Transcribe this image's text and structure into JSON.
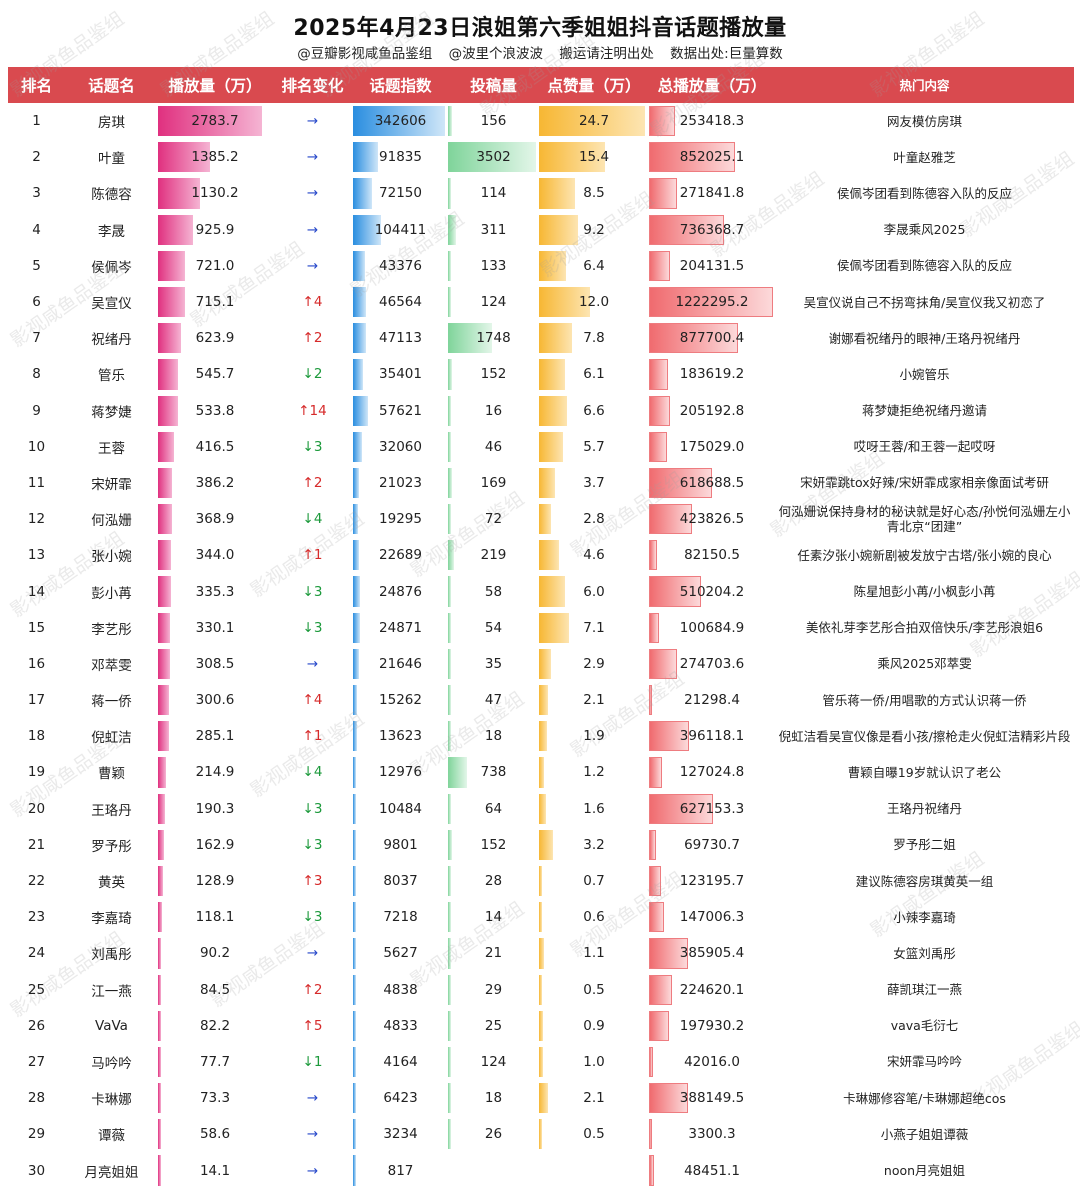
{
  "title": "2025年4月23日浪姐第六季姐姐抖音话题播放量",
  "subtitle": [
    "@豆瓣影视咸鱼品鉴组",
    "@波里个浪波波",
    "搬运请注明出处",
    "数据出处:巨量算数"
  ],
  "watermark": "影视咸鱼品鉴组",
  "headers": [
    "排名",
    "话题名",
    "播放量（万）",
    "排名变化",
    "话题指数",
    "投稿量",
    "点赞量（万）",
    "总播放量（万）",
    "热门内容"
  ],
  "colors": {
    "header_bg": "#d94a4f",
    "up": "#d62a2a",
    "down": "#1d9a3c",
    "same": "#2446c9"
  },
  "rows": [
    {
      "rank": "1",
      "name": "房琪",
      "play": "2783.7",
      "change": "→",
      "dir": "same",
      "index": "342606",
      "posts": "156",
      "likes": "24.7",
      "total": "253418.3",
      "hot": "网友模仿房琪"
    },
    {
      "rank": "2",
      "name": "叶童",
      "play": "1385.2",
      "change": "→",
      "dir": "same",
      "index": "91835",
      "posts": "3502",
      "likes": "15.4",
      "total": "852025.1",
      "hot": "叶童赵雅芝"
    },
    {
      "rank": "3",
      "name": "陈德容",
      "play": "1130.2",
      "change": "→",
      "dir": "same",
      "index": "72150",
      "posts": "114",
      "likes": "8.5",
      "total": "271841.8",
      "hot": "侯佩岑团看到陈德容入队的反应"
    },
    {
      "rank": "4",
      "name": "李晟",
      "play": "925.9",
      "change": "→",
      "dir": "same",
      "index": "104411",
      "posts": "311",
      "likes": "9.2",
      "total": "736368.7",
      "hot": "李晟乘风2025"
    },
    {
      "rank": "5",
      "name": "侯佩岑",
      "play": "721.0",
      "change": "→",
      "dir": "same",
      "index": "43376",
      "posts": "133",
      "likes": "6.4",
      "total": "204131.5",
      "hot": "侯佩岑团看到陈德容入队的反应"
    },
    {
      "rank": "6",
      "name": "吴宣仪",
      "play": "715.1",
      "change": "↑4",
      "dir": "up",
      "index": "46564",
      "posts": "124",
      "likes": "12.0",
      "total": "1222295.2",
      "hot": "吴宣仪说自己不拐弯抹角/吴宣仪我又初恋了"
    },
    {
      "rank": "7",
      "name": "祝绪丹",
      "play": "623.9",
      "change": "↑2",
      "dir": "up",
      "index": "47113",
      "posts": "1748",
      "likes": "7.8",
      "total": "877700.4",
      "hot": "谢娜看祝绪丹的眼神/王珞丹祝绪丹"
    },
    {
      "rank": "8",
      "name": "管乐",
      "play": "545.7",
      "change": "↓2",
      "dir": "down",
      "index": "35401",
      "posts": "152",
      "likes": "6.1",
      "total": "183619.2",
      "hot": "小婉管乐"
    },
    {
      "rank": "9",
      "name": "蒋梦婕",
      "play": "533.8",
      "change": "↑14",
      "dir": "up",
      "index": "57621",
      "posts": "16",
      "likes": "6.6",
      "total": "205192.8",
      "hot": "蒋梦婕拒绝祝绪丹邀请"
    },
    {
      "rank": "10",
      "name": "王蓉",
      "play": "416.5",
      "change": "↓3",
      "dir": "down",
      "index": "32060",
      "posts": "46",
      "likes": "5.7",
      "total": "175029.0",
      "hot": "哎呀王蓉/和王蓉一起哎呀"
    },
    {
      "rank": "11",
      "name": "宋妍霏",
      "play": "386.2",
      "change": "↑2",
      "dir": "up",
      "index": "21023",
      "posts": "169",
      "likes": "3.7",
      "total": "618688.5",
      "hot": "宋妍霏跳tox好辣/宋妍霏成家相亲像面试考研"
    },
    {
      "rank": "12",
      "name": "何泓姗",
      "play": "368.9",
      "change": "↓4",
      "dir": "down",
      "index": "19295",
      "posts": "72",
      "likes": "2.8",
      "total": "423826.5",
      "hot": "何泓姗说保持身材的秘诀就是好心态/孙悦何泓姗左小青北京“团建”"
    },
    {
      "rank": "13",
      "name": "张小婉",
      "play": "344.0",
      "change": "↑1",
      "dir": "up",
      "index": "22689",
      "posts": "219",
      "likes": "4.6",
      "total": "82150.5",
      "hot": "任素汐张小婉新剧被发放宁古塔/张小婉的良心"
    },
    {
      "rank": "14",
      "name": "彭小苒",
      "play": "335.3",
      "change": "↓3",
      "dir": "down",
      "index": "24876",
      "posts": "58",
      "likes": "6.0",
      "total": "510204.2",
      "hot": "陈星旭彭小苒/小枫彭小苒"
    },
    {
      "rank": "15",
      "name": "李艺彤",
      "play": "330.1",
      "change": "↓3",
      "dir": "down",
      "index": "24871",
      "posts": "54",
      "likes": "7.1",
      "total": "100684.9",
      "hot": "美依礼芽李艺彤合拍双倍快乐/李艺彤浪姐6"
    },
    {
      "rank": "16",
      "name": "邓萃雯",
      "play": "308.5",
      "change": "→",
      "dir": "same",
      "index": "21646",
      "posts": "35",
      "likes": "2.9",
      "total": "274703.6",
      "hot": "乘风2025邓萃雯"
    },
    {
      "rank": "17",
      "name": "蒋一侨",
      "play": "300.6",
      "change": "↑4",
      "dir": "up",
      "index": "15262",
      "posts": "47",
      "likes": "2.1",
      "total": "21298.4",
      "hot": "管乐蒋一侨/用唱歌的方式认识蒋一侨"
    },
    {
      "rank": "18",
      "name": "倪虹洁",
      "play": "285.1",
      "change": "↑1",
      "dir": "up",
      "index": "13623",
      "posts": "18",
      "likes": "1.9",
      "total": "396118.1",
      "hot": "倪虹洁看吴宣仪像是看小孩/擦枪走火倪虹洁精彩片段"
    },
    {
      "rank": "19",
      "name": "曹颖",
      "play": "214.9",
      "change": "↓4",
      "dir": "down",
      "index": "12976",
      "posts": "738",
      "likes": "1.2",
      "total": "127024.8",
      "hot": "曹颖自曝19岁就认识了老公"
    },
    {
      "rank": "20",
      "name": "王珞丹",
      "play": "190.3",
      "change": "↓3",
      "dir": "down",
      "index": "10484",
      "posts": "64",
      "likes": "1.6",
      "total": "627153.3",
      "hot": "王珞丹祝绪丹"
    },
    {
      "rank": "21",
      "name": "罗予彤",
      "play": "162.9",
      "change": "↓3",
      "dir": "down",
      "index": "9801",
      "posts": "152",
      "likes": "3.2",
      "total": "69730.7",
      "hot": "罗予彤二姐"
    },
    {
      "rank": "22",
      "name": "黄英",
      "play": "128.9",
      "change": "↑3",
      "dir": "up",
      "index": "8037",
      "posts": "28",
      "likes": "0.7",
      "total": "123195.7",
      "hot": "建议陈德容房琪黄英一组"
    },
    {
      "rank": "23",
      "name": "李嘉琦",
      "play": "118.1",
      "change": "↓3",
      "dir": "down",
      "index": "7218",
      "posts": "14",
      "likes": "0.6",
      "total": "147006.3",
      "hot": "小辣李嘉琦"
    },
    {
      "rank": "24",
      "name": "刘禹彤",
      "play": "90.2",
      "change": "→",
      "dir": "same",
      "index": "5627",
      "posts": "21",
      "likes": "1.1",
      "total": "385905.4",
      "hot": "女篮刘禹彤"
    },
    {
      "rank": "25",
      "name": "江一燕",
      "play": "84.5",
      "change": "↑2",
      "dir": "up",
      "index": "4838",
      "posts": "29",
      "likes": "0.5",
      "total": "224620.1",
      "hot": "薛凯琪江一燕"
    },
    {
      "rank": "26",
      "name": "VaVa",
      "play": "82.2",
      "change": "↑5",
      "dir": "up",
      "index": "4833",
      "posts": "25",
      "likes": "0.9",
      "total": "197930.2",
      "hot": "vava毛衍七"
    },
    {
      "rank": "27",
      "name": "马吟吟",
      "play": "77.7",
      "change": "↓1",
      "dir": "down",
      "index": "4164",
      "posts": "124",
      "likes": "1.0",
      "total": "42016.0",
      "hot": "宋妍霏马吟吟"
    },
    {
      "rank": "28",
      "name": "卡琳娜",
      "play": "73.3",
      "change": "→",
      "dir": "same",
      "index": "6423",
      "posts": "18",
      "likes": "2.1",
      "total": "388149.5",
      "hot": "卡琳娜修容笔/卡琳娜超绝cos"
    },
    {
      "rank": "29",
      "name": "谭薇",
      "play": "58.6",
      "change": "→",
      "dir": "same",
      "index": "3234",
      "posts": "26",
      "likes": "0.5",
      "total": "3300.3",
      "hot": "小燕子姐姐谭薇"
    },
    {
      "rank": "30",
      "name": "月亮姐姐",
      "play": "14.1",
      "change": "→",
      "dir": "same",
      "index": "817",
      "posts": "",
      "likes": "",
      "total": "48451.1",
      "hot": "noon月亮姐姐"
    }
  ]
}
